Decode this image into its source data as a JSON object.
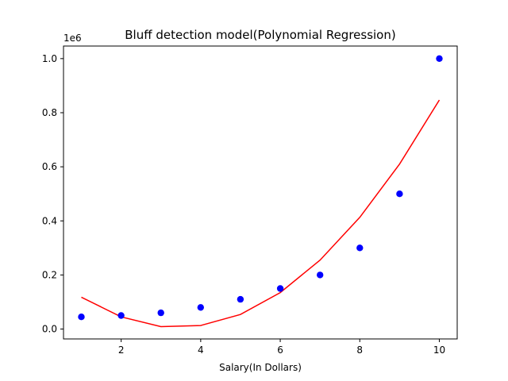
{
  "chart_data": {
    "type": "scatter",
    "title": "Bluff detection model(Polynomial Regression)",
    "xlabel": "Salary(In Dollars)",
    "ylabel": "",
    "y_offset_text": "1e6",
    "xlim": [
      0.55,
      10.45
    ],
    "ylim": [
      -0.0365,
      1.0465
    ],
    "x_ticks": [
      2,
      4,
      6,
      8,
      10
    ],
    "x_tick_labels": [
      "2",
      "4",
      "6",
      "8",
      "10"
    ],
    "y_ticks": [
      0.0,
      0.2,
      0.4,
      0.6,
      0.8,
      1.0
    ],
    "y_tick_labels": [
      "0.0",
      "0.2",
      "0.4",
      "0.6",
      "0.8",
      "1.0"
    ],
    "grid": false,
    "series": [
      {
        "kind": "scatter",
        "color": "#0000ff",
        "x": [
          1,
          2,
          3,
          4,
          5,
          6,
          7,
          8,
          9,
          10
        ],
        "y": [
          0.045,
          0.05,
          0.06,
          0.08,
          0.11,
          0.15,
          0.2,
          0.3,
          0.5,
          1.0
        ]
      },
      {
        "kind": "line",
        "color": "#ff0000",
        "x": [
          1,
          2,
          3,
          4,
          5,
          6,
          7,
          8,
          9,
          10
        ],
        "y": [
          0.118,
          0.045,
          0.009,
          0.013,
          0.054,
          0.135,
          0.255,
          0.413,
          0.61,
          0.847
        ]
      }
    ]
  }
}
